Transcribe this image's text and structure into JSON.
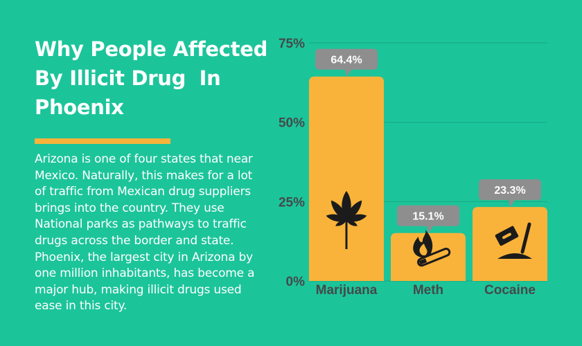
{
  "panel": {
    "title_lines": [
      "Why People Affected",
      "By Illicit Drug  In",
      "Phoenix"
    ],
    "body_lines": [
      "Arizona is one of four states that near",
      "Mexico. Naturally, this makes for a lot",
      "of traffic from Mexican drug suppliers",
      "brings into the country. They use",
      "National parks as pathways to traffic",
      "drugs across the border and state.",
      "Phoenix, the largest city in Arizona by",
      "one million inhabitants, has become a",
      "major hub, making illicit drugs used",
      "ease in this city."
    ]
  },
  "colors": {
    "background": "#1cc49a",
    "bar": "#f9b33a",
    "label_box": "#8e8e8e",
    "text_dark": "#444a4a",
    "accent": "#f9b33a"
  },
  "chart_data": {
    "type": "bar",
    "categories": [
      "Marijuana",
      "Meth",
      "Cocaine"
    ],
    "values": [
      64.4,
      15.1,
      23.3
    ],
    "data_labels": [
      "64.4%",
      "15.1%",
      "23.3%"
    ],
    "icons": [
      "cannabis-leaf-icon",
      "burning-pipe-icon",
      "razor-blade-icon"
    ],
    "ylim": [
      0,
      75
    ],
    "y_ticks": [
      0,
      25,
      50,
      75
    ],
    "y_tick_labels": [
      "0%",
      "25%",
      "50%",
      "75%"
    ],
    "grid": true,
    "title": "",
    "xlabel": "",
    "ylabel": ""
  }
}
